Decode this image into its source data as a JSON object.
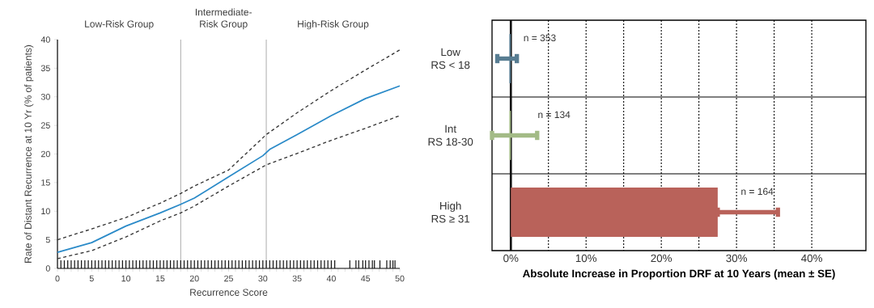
{
  "chart_data": [
    {
      "type": "line",
      "xlabel": "Recurrence Score",
      "ylabel": "Rate of Distant Recurrence at 10 Yr (% of patients)",
      "xlim": [
        0,
        50
      ],
      "ylim": [
        0,
        40
      ],
      "xticks": [
        0,
        {
          "value": 1,
          "label": null
        },
        {
          "value": 2,
          "label": null
        },
        {
          "value": 3,
          "label": null
        },
        {
          "value": 4,
          "label": null
        },
        5,
        {
          "value": 6,
          "label": null
        },
        {
          "value": 7,
          "label": null
        },
        {
          "value": 8,
          "label": null
        },
        {
          "value": 9,
          "label": null
        },
        10,
        {
          "value": 11,
          "label": null
        },
        {
          "value": 12,
          "label": null
        },
        {
          "value": 13,
          "label": null
        },
        {
          "value": 14,
          "label": null
        },
        15,
        {
          "value": 16,
          "label": null
        },
        {
          "value": 17,
          "label": null
        },
        {
          "value": 18,
          "label": null
        },
        {
          "value": 19,
          "label": null
        },
        20,
        {
          "value": 21,
          "label": null
        },
        {
          "value": 22,
          "label": null
        },
        {
          "value": 23,
          "label": null
        },
        {
          "value": 24,
          "label": null
        },
        25,
        {
          "value": 26,
          "label": null
        },
        {
          "value": 27,
          "label": null
        },
        {
          "value": 28,
          "label": null
        },
        {
          "value": 29,
          "label": null
        },
        30,
        {
          "value": 31,
          "label": null
        },
        {
          "value": 32,
          "label": null
        },
        {
          "value": 33,
          "label": null
        },
        {
          "value": 34,
          "label": null
        },
        35,
        {
          "value": 36,
          "label": null
        },
        {
          "value": 37,
          "label": null
        },
        {
          "value": 38,
          "label": null
        },
        {
          "value": 39,
          "label": null
        },
        40,
        {
          "value": 41,
          "label": null
        },
        {
          "value": 42,
          "label": null
        },
        {
          "value": 43,
          "label": null
        },
        {
          "value": 44,
          "label": null
        },
        45,
        {
          "value": 46,
          "label": null
        },
        {
          "value": 47,
          "label": null
        },
        {
          "value": 48,
          "label": null
        },
        {
          "value": 49,
          "label": null
        },
        50
      ],
      "yticks": [
        0,
        5,
        10,
        15,
        20,
        25,
        30,
        35,
        40
      ],
      "series": [
        {
          "type": "line",
          "color": "#2a8ac8",
          "line_style": "solid",
          "x": [
            0,
            5,
            10,
            15,
            18,
            20,
            25,
            30,
            31,
            35,
            40,
            45,
            50
          ],
          "values": [
            2.8,
            4.5,
            7.4,
            9.7,
            11.2,
            12.3,
            16.0,
            19.7,
            20.8,
            23.4,
            26.7,
            29.7,
            31.9
          ]
        },
        {
          "type": "line",
          "color": "#333333",
          "line_style": "dashed",
          "x": [
            0,
            5,
            10,
            15,
            18,
            20,
            25,
            30.5,
            35,
            40,
            45,
            50
          ],
          "values": [
            5.0,
            6.9,
            8.9,
            11.4,
            13.1,
            14.4,
            17.2,
            23.4,
            27.2,
            31.1,
            34.7,
            38.2
          ]
        },
        {
          "type": "line",
          "color": "#333333",
          "line_style": "dashed",
          "x": [
            0,
            5,
            10,
            15,
            18,
            20,
            25,
            30.5,
            35,
            40,
            45,
            50
          ],
          "values": [
            1.7,
            3.1,
            5.5,
            8.3,
            9.7,
            10.9,
            14.4,
            18.1,
            20.1,
            22.4,
            24.5,
            26.7
          ]
        },
        {
          "type": "bar",
          "color": "#111111",
          "x": [
            0.5,
            1,
            1.5,
            2,
            2.5,
            3,
            3.5,
            4,
            4.5,
            5,
            5.5,
            6,
            6.5,
            7,
            7.5,
            8,
            8.5,
            9,
            9.5,
            10,
            10.5,
            11,
            11.5,
            12,
            12.5,
            13,
            13.5,
            14,
            14.5,
            15,
            15.5,
            16,
            16.5,
            17,
            17.5,
            18,
            18.5,
            19,
            19.5,
            20,
            20.5,
            21,
            21.5,
            22,
            22.5,
            23,
            23.5,
            24,
            24.5,
            25,
            25.5,
            26,
            26.5,
            27,
            27.5,
            28,
            28.5,
            29,
            29.5,
            30,
            30.5,
            31,
            31.5,
            32,
            32.5,
            33,
            33.5,
            34,
            34.5,
            35,
            35.5,
            36,
            36.5,
            37,
            37.5,
            38,
            38.5,
            39,
            39.5,
            40,
            40.5,
            42.7,
            43.6,
            44,
            44.6,
            45,
            45.5,
            46,
            46.3,
            47.1,
            48.1,
            48.6,
            49,
            49.3
          ],
          "values": [
            1.4,
            1.4,
            1.4,
            1.4,
            1.4,
            1.4,
            1.4,
            1.4,
            1.4,
            1.4,
            1.4,
            1.4,
            1.4,
            1.4,
            1.4,
            1.4,
            1.4,
            1.4,
            1.4,
            1.4,
            1.4,
            1.4,
            1.4,
            1.4,
            1.4,
            1.4,
            1.4,
            1.4,
            1.4,
            1.4,
            1.4,
            1.4,
            1.4,
            1.4,
            1.4,
            1.4,
            1.4,
            1.4,
            1.4,
            1.4,
            1.4,
            1.4,
            1.4,
            1.4,
            1.4,
            1.4,
            1.4,
            1.4,
            1.4,
            1.4,
            1.4,
            1.4,
            1.4,
            1.4,
            1.4,
            1.4,
            1.4,
            1.4,
            1.4,
            1.4,
            1.4,
            1.4,
            1.4,
            1.4,
            1.4,
            1.4,
            1.4,
            1.4,
            1.4,
            1.4,
            1.4,
            1.4,
            1.4,
            1.4,
            1.4,
            1.4,
            1.4,
            1.4,
            1.4,
            1.4,
            1.4,
            1.4,
            1.4,
            1.4,
            1.4,
            1.4,
            1.4,
            1.4,
            1.4,
            1.4,
            1.4,
            1.4,
            1.4,
            1.4
          ]
        }
      ],
      "ref_lines": [
        {
          "axis": "x",
          "value": 18,
          "color": "#b0b0b0"
        },
        {
          "axis": "x",
          "value": 30.5,
          "color": "#b0b0b0"
        }
      ],
      "annotations": [
        "Low-Risk Group",
        "Intermediate-\nRisk Group",
        "High-Risk Group"
      ]
    },
    {
      "type": "bar",
      "orientation": "horizontal",
      "xlabel": "Absolute Increase in Proportion DRF at 10 Years (mean ± SE)",
      "categories": [
        "Low\nRS < 18",
        "Int\nRS 18-30",
        "High\nRS ≥ 31"
      ],
      "values": [
        -0.2,
        -0.2,
        27.5
      ],
      "colors": [
        "#587d92",
        "#a3bb86",
        "#b9625a"
      ],
      "errors": [
        [
          -1.8,
          0.8
        ],
        [
          -2.5,
          3.5
        ],
        [
          27.5,
          35.5
        ]
      ],
      "xlim": [
        -2.5,
        47.2
      ],
      "xticks": [
        {
          "value": 0,
          "label": "0%"
        },
        {
          "value": 5,
          "label": null
        },
        {
          "value": 10,
          "label": "10%"
        },
        {
          "value": 15,
          "label": null
        },
        {
          "value": 20,
          "label": "20%"
        },
        {
          "value": 25,
          "label": null
        },
        {
          "value": 30,
          "label": "30%"
        },
        {
          "value": 35,
          "label": null
        },
        {
          "value": 40,
          "label": "40%"
        }
      ],
      "grid": "x",
      "ref_lines": [
        {
          "axis": "x",
          "value": 0,
          "color": "#111111"
        }
      ],
      "annotations": [
        {
          "text": "n = 353",
          "x": 1.5,
          "y": "Low\nRS < 18"
        },
        {
          "text": "n = 134",
          "x": 3.4,
          "y": "Int\nRS 18-30"
        },
        {
          "text": "n = 164",
          "x": 30.4,
          "y": "High\nRS ≥ 31"
        }
      ]
    }
  ]
}
